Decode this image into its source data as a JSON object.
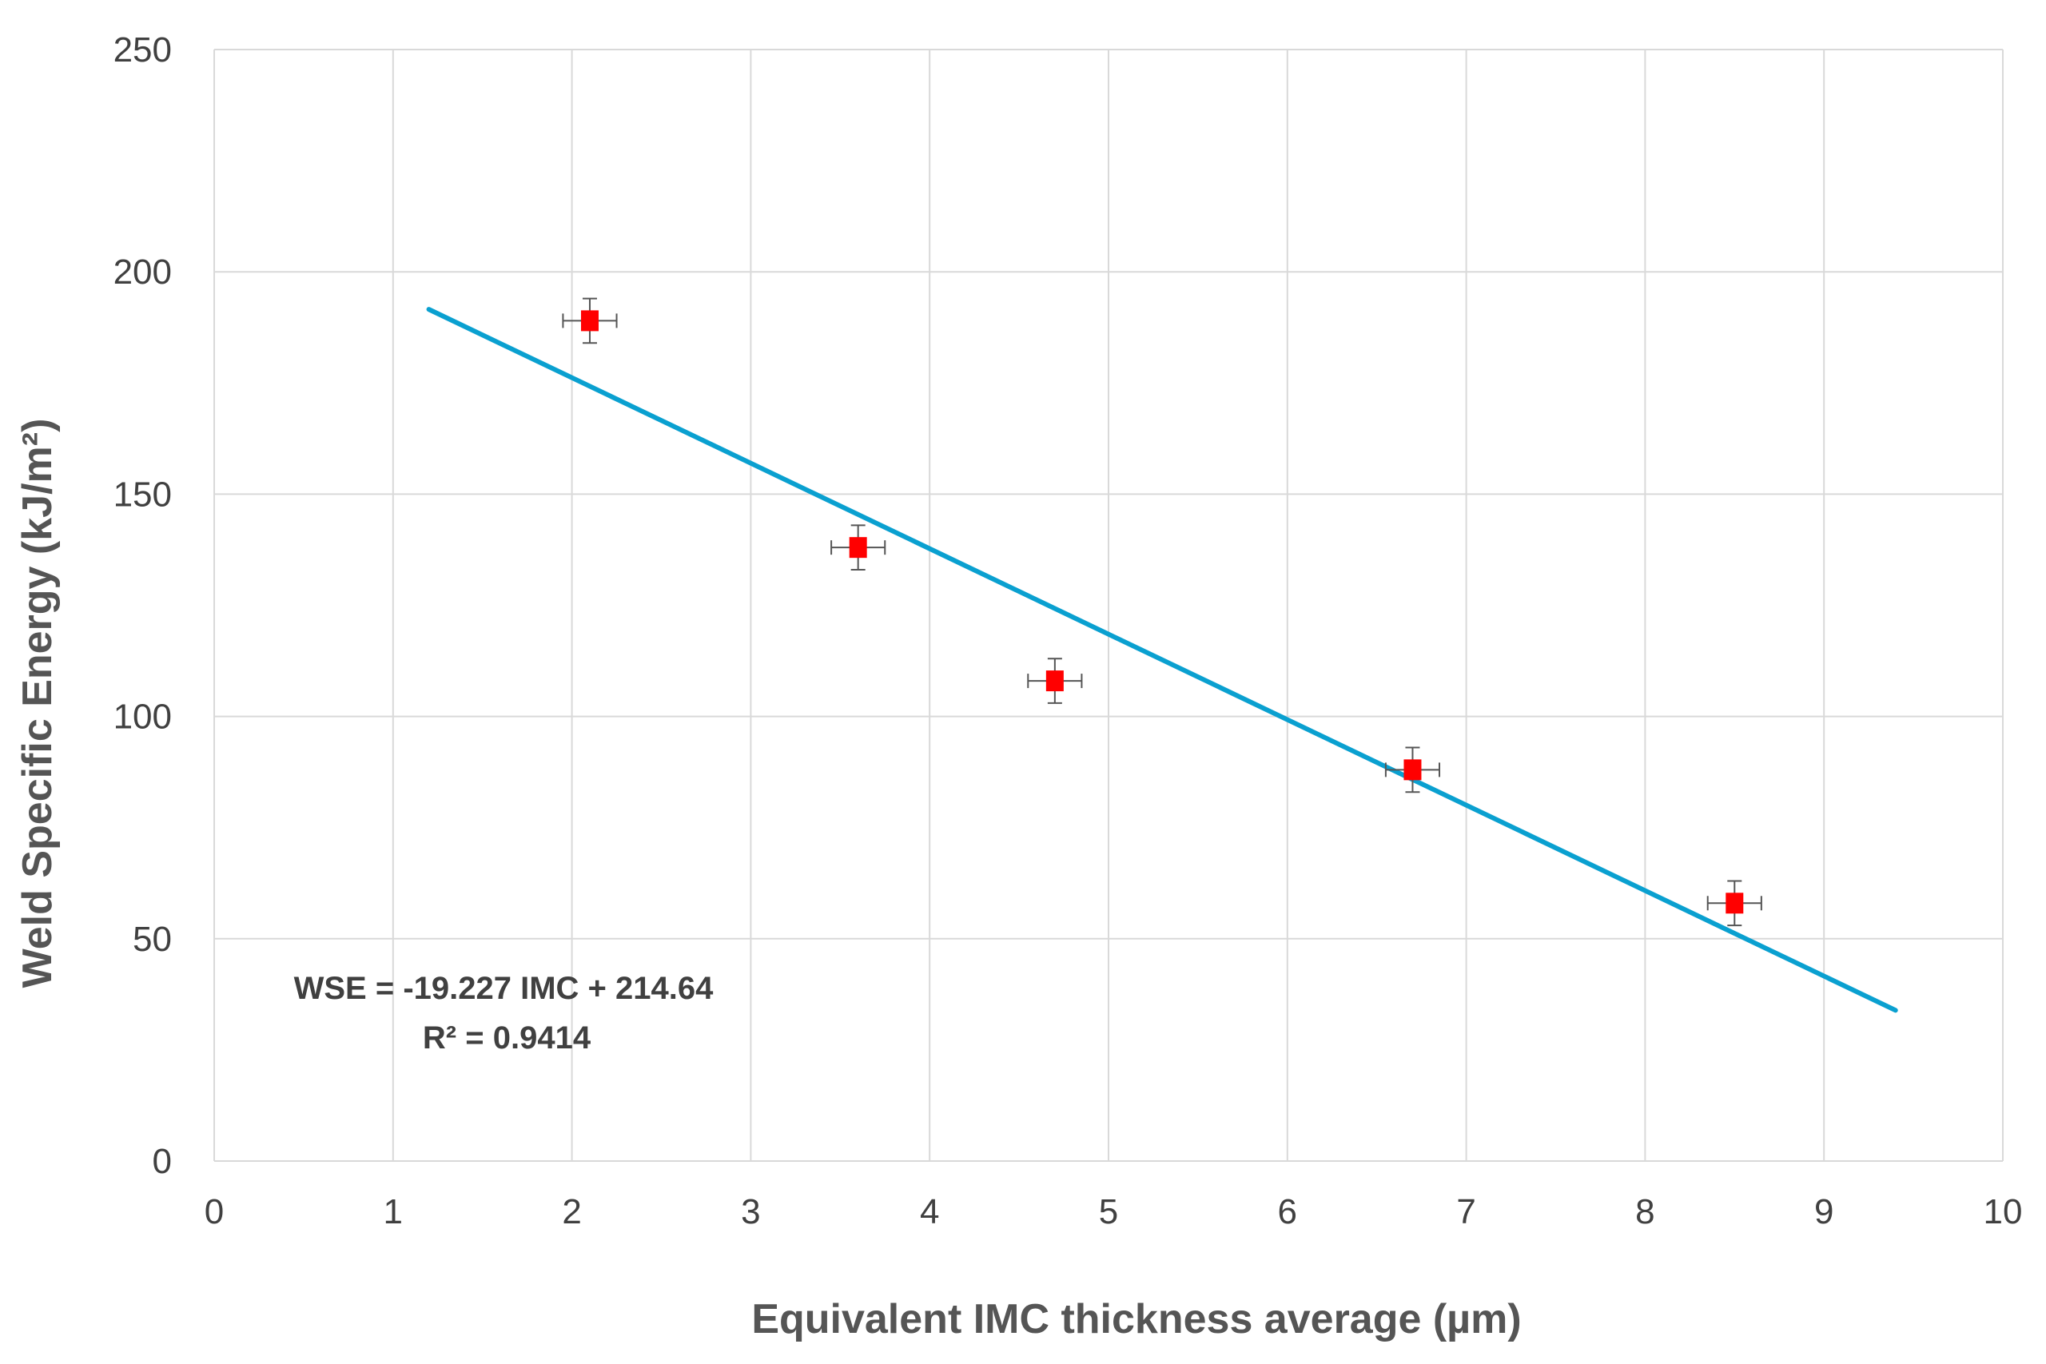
{
  "chart_data": {
    "type": "scatter",
    "xlabel": "Equivalent IMC thickness average (µm)",
    "ylabel": "Weld Specific Energy (kJ/m²)",
    "xlim": [
      0,
      10
    ],
    "ylim": [
      0,
      250
    ],
    "xticks": [
      "0",
      "1",
      "2",
      "3",
      "4",
      "5",
      "6",
      "7",
      "8",
      "9",
      "10"
    ],
    "yticks": [
      "0",
      "50",
      "100",
      "150",
      "200",
      "250"
    ],
    "grid": true,
    "legend": "none",
    "points": [
      {
        "x": 2.1,
        "y": 189,
        "xerr": 0.15,
        "yerr": 5
      },
      {
        "x": 3.6,
        "y": 138,
        "xerr": 0.15,
        "yerr": 5
      },
      {
        "x": 4.7,
        "y": 108,
        "xerr": 0.15,
        "yerr": 5
      },
      {
        "x": 6.7,
        "y": 88,
        "xerr": 0.15,
        "yerr": 5
      },
      {
        "x": 8.5,
        "y": 58,
        "xerr": 0.15,
        "yerr": 5
      }
    ],
    "trendline": {
      "slope": -19.227,
      "intercept": 214.64,
      "x_range": [
        1.2,
        9.4
      ]
    },
    "annotations": {
      "equation": "WSE = -19.227 IMC + 214.64",
      "r2": "R² = 0.9414"
    },
    "colors": {
      "marker": "#ff0000",
      "trendline": "#0aa0d0",
      "errorbar": "#555555",
      "grid": "#d9d9d9"
    }
  }
}
